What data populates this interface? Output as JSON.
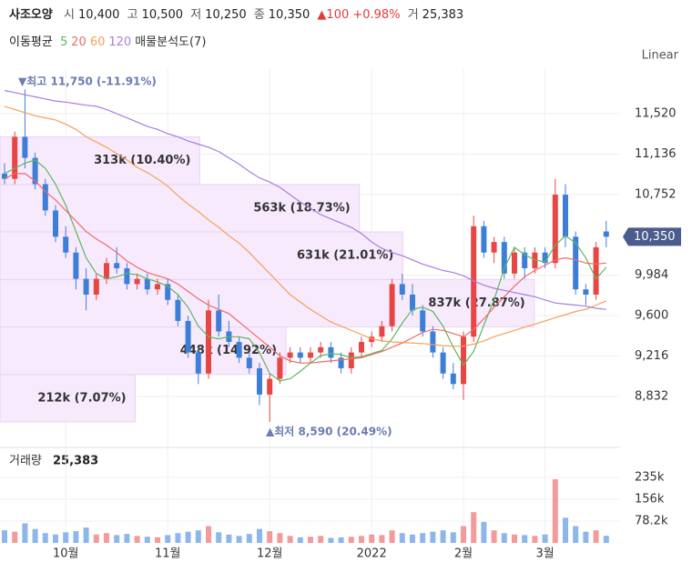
{
  "header": {
    "name": "사조오양",
    "items": [
      {
        "label": "시",
        "value": "10,400"
      },
      {
        "label": "고",
        "value": "10,500"
      },
      {
        "label": "저",
        "value": "10,250"
      },
      {
        "label": "종",
        "value": "10,350"
      }
    ],
    "change": "▲100 +0.98%",
    "volume_label": "거",
    "volume_value": "25,383"
  },
  "chart_data": [
    {
      "type": "candlestick",
      "legend_title": "이동평균",
      "profile_title": "매물분석도(7)",
      "scale_label": "Linear",
      "categories": [
        null,
        null,
        null,
        null,
        null,
        null,
        "10월",
        null,
        null,
        null,
        null,
        null,
        null,
        null,
        null,
        null,
        "11월",
        null,
        null,
        null,
        null,
        null,
        null,
        null,
        null,
        null,
        "12월",
        null,
        null,
        null,
        null,
        null,
        null,
        null,
        null,
        null,
        "2022",
        null,
        null,
        null,
        null,
        null,
        null,
        null,
        null,
        "2월",
        null,
        null,
        null,
        null,
        null,
        null,
        null,
        "3월",
        null,
        null,
        null,
        null,
        null,
        null
      ],
      "open": [
        10950,
        10900,
        11300,
        11100,
        10850,
        10600,
        10350,
        10200,
        9950,
        9800,
        9950,
        10100,
        10050,
        9900,
        9950,
        9850,
        9900,
        9750,
        9550,
        9250,
        9050,
        9650,
        9450,
        9350,
        9200,
        9100,
        8850,
        9000,
        9200,
        9250,
        9200,
        9250,
        9300,
        9200,
        9100,
        9250,
        9350,
        9400,
        9500,
        9900,
        9800,
        9650,
        9450,
        9250,
        9050,
        8950,
        9400,
        10450,
        10200,
        10300,
        10000,
        10200,
        10050,
        10200,
        10100,
        10750,
        10350,
        9850,
        9800,
        10400
      ],
      "high": [
        11050,
        11350,
        11750,
        11150,
        10900,
        10650,
        10450,
        10250,
        10050,
        10000,
        10150,
        10250,
        10100,
        10000,
        10000,
        9950,
        9950,
        9800,
        9600,
        9300,
        9750,
        9800,
        9550,
        9400,
        9250,
        9150,
        9050,
        9250,
        9300,
        9300,
        9300,
        9350,
        9350,
        9250,
        9300,
        9400,
        9450,
        9550,
        9950,
        10000,
        9900,
        9700,
        9500,
        9300,
        9150,
        9450,
        10550,
        10500,
        10350,
        10350,
        10250,
        10250,
        10250,
        10250,
        10900,
        10850,
        10400,
        9900,
        10300,
        10500
      ],
      "low": [
        10850,
        10850,
        11000,
        10800,
        10550,
        10300,
        10150,
        9850,
        9650,
        9750,
        9900,
        10000,
        9850,
        9850,
        9800,
        9800,
        9700,
        9500,
        9200,
        8950,
        9000,
        9400,
        9300,
        9150,
        9050,
        8750,
        8590,
        8950,
        9150,
        9150,
        9150,
        9200,
        9150,
        9050,
        9050,
        9200,
        9300,
        9350,
        9450,
        9750,
        9600,
        9400,
        9200,
        9000,
        8900,
        8800,
        9350,
        10150,
        10100,
        9950,
        9950,
        9950,
        10000,
        10050,
        10050,
        10250,
        9800,
        9700,
        9750,
        10250
      ],
      "close": [
        10900,
        11300,
        11100,
        10850,
        10600,
        10350,
        10200,
        9950,
        9800,
        9950,
        10100,
        10050,
        9900,
        9950,
        9850,
        9900,
        9750,
        9550,
        9250,
        9050,
        9650,
        9450,
        9350,
        9200,
        9100,
        8850,
        9000,
        9200,
        9250,
        9200,
        9250,
        9300,
        9200,
        9100,
        9250,
        9350,
        9400,
        9500,
        9900,
        9800,
        9650,
        9450,
        9250,
        9050,
        8950,
        9400,
        10450,
        10200,
        10300,
        10000,
        10200,
        10050,
        10200,
        10100,
        10750,
        10350,
        9850,
        9800,
        10250,
        10350
      ],
      "up_color": "#e84545",
      "down_color": "#3d7fd8",
      "series": [
        {
          "name": "5",
          "color": "#5cb85c",
          "values": [
            10950,
            11000,
            11050,
            11080,
            11000,
            10850,
            10650,
            10400,
            10150,
            10000,
            9950,
            9970,
            10000,
            9990,
            9950,
            9920,
            9880,
            9800,
            9680,
            9500,
            9400,
            9380,
            9400,
            9400,
            9380,
            9250,
            9050,
            8980,
            9000,
            9070,
            9150,
            9220,
            9240,
            9230,
            9200,
            9210,
            9240,
            9270,
            9380,
            9530,
            9660,
            9680,
            9640,
            9500,
            9300,
            9130,
            9260,
            9510,
            9750,
            10050,
            10250,
            10180,
            10130,
            10110,
            10270,
            10360,
            10290,
            10150,
            9950,
            10060
          ]
        },
        {
          "name": "20",
          "color": "#f06a6a",
          "values": [
            10900,
            10950,
            10950,
            10880,
            10780,
            10700,
            10600,
            10500,
            10400,
            10330,
            10270,
            10200,
            10120,
            10060,
            10010,
            9980,
            9950,
            9900,
            9830,
            9760,
            9700,
            9660,
            9620,
            9540,
            9460,
            9380,
            9300,
            9220,
            9170,
            9150,
            9150,
            9160,
            9170,
            9180,
            9190,
            9200,
            9230,
            9260,
            9300,
            9340,
            9390,
            9440,
            9470,
            9460,
            9430,
            9400,
            9470,
            9570,
            9680,
            9780,
            9880,
            9970,
            10030,
            10080,
            10130,
            10150,
            10130,
            10100,
            10090,
            10100
          ]
        },
        {
          "name": "60",
          "color": "#f5a05a",
          "values": [
            11590,
            11560,
            11530,
            11500,
            11480,
            11460,
            11420,
            11370,
            11300,
            11250,
            11200,
            11140,
            11080,
            11010,
            10960,
            10900,
            10830,
            10740,
            10660,
            10590,
            10510,
            10440,
            10360,
            10290,
            10200,
            10100,
            10000,
            9900,
            9800,
            9730,
            9660,
            9600,
            9540,
            9500,
            9460,
            9420,
            9380,
            9360,
            9350,
            9345,
            9340,
            9335,
            9325,
            9315,
            9310,
            9310,
            9330,
            9360,
            9400,
            9430,
            9460,
            9490,
            9520,
            9550,
            9580,
            9610,
            9640,
            9660,
            9700,
            9740
          ]
        },
        {
          "name": "120",
          "color": "#a77ee0",
          "values": [
            11740,
            11720,
            11700,
            11680,
            11660,
            11640,
            11630,
            11615,
            11600,
            11590,
            11560,
            11520,
            11480,
            11440,
            11400,
            11370,
            11330,
            11300,
            11260,
            11230,
            11200,
            11160,
            11100,
            11040,
            10970,
            10910,
            10870,
            10820,
            10750,
            10680,
            10620,
            10560,
            10520,
            10480,
            10440,
            10380,
            10300,
            10240,
            10200,
            10170,
            10130,
            10090,
            10060,
            10030,
            10010,
            9980,
            9930,
            9890,
            9860,
            9840,
            9820,
            9800,
            9780,
            9750,
            9720,
            9710,
            9700,
            9690,
            9670,
            9660
          ]
        }
      ],
      "ylim": [
        8365,
        11952
      ],
      "yticks": [
        {
          "value": 8832,
          "label": "8,832"
        },
        {
          "value": 9216,
          "label": "9,216"
        },
        {
          "value": 9600,
          "label": "9,600"
        },
        {
          "value": 9984,
          "label": "9,984"
        },
        {
          "value": 10752,
          "label": "10,752"
        },
        {
          "value": 11136,
          "label": "11,136"
        },
        {
          "value": 11520,
          "label": "11,520"
        }
      ],
      "grid": true,
      "last_price": {
        "value": 10350,
        "label": "10,350",
        "color": "#4a5b8c"
      },
      "annotations": [
        "▼최고 11,750 (-11.91%)",
        "▲최저 8,590 (20.49%)"
      ],
      "volume_profile": {
        "bins": [
          8590,
          9041,
          9493,
          9944,
          10396,
          10847,
          11299
        ],
        "values": [
          212000,
          448000,
          837000,
          631000,
          563000,
          313000
        ],
        "value_labels": [
          "212k (7.07%)",
          "448k (14.92%)",
          "837k (27.87%)",
          "631k (21.01%)",
          "563k (18.73%)",
          "313k (10.40%)"
        ],
        "xlim": [
          0,
          970000
        ],
        "color": "#f7eafc",
        "edge_color": "#ead2f4"
      }
    },
    {
      "type": "bar",
      "title": "거래량",
      "title_value": "25,383",
      "values": [
        45000,
        40000,
        70000,
        50000,
        35000,
        30000,
        38000,
        42000,
        55000,
        30000,
        35000,
        28000,
        32000,
        25000,
        22000,
        20000,
        28000,
        35000,
        40000,
        45000,
        60000,
        38000,
        30000,
        25000,
        32000,
        50000,
        42000,
        35000,
        25000,
        20000,
        22000,
        25000,
        18000,
        20000,
        22000,
        25000,
        30000,
        28000,
        45000,
        35000,
        30000,
        35000,
        40000,
        45000,
        38000,
        60000,
        110000,
        75000,
        45000,
        35000,
        30000,
        28000,
        25000,
        30000,
        228000,
        90000,
        60000,
        40000,
        45000,
        25383
      ],
      "up_color": "#f39a9a",
      "down_color": "#8db6ea",
      "ylim": [
        0,
        332000
      ],
      "yticks": [
        {
          "value": 78200,
          "label": "78.2k"
        },
        {
          "value": 156400,
          "label": "156k"
        },
        {
          "value": 234600,
          "label": "235k"
        }
      ],
      "grid": true
    }
  ]
}
